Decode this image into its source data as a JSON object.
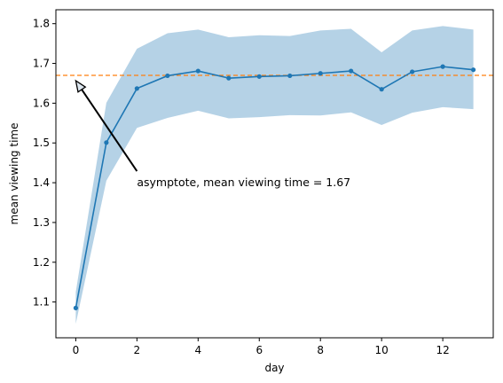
{
  "chart_data": {
    "type": "line",
    "title": "",
    "xlabel": "day",
    "ylabel": "mean viewing time",
    "xlim": [
      -0.65,
      13.65
    ],
    "ylim": [
      1.01,
      1.835
    ],
    "xticks": [
      0,
      2,
      4,
      6,
      8,
      10,
      12
    ],
    "yticks": [
      1.1,
      1.2,
      1.3,
      1.4,
      1.5,
      1.6,
      1.7,
      1.8
    ],
    "grid": false,
    "legend": "none",
    "series": [
      {
        "kind": "line",
        "color": "#1f77b4",
        "marker": "circle",
        "x": [
          0,
          1,
          2,
          3,
          4,
          5,
          6,
          7,
          8,
          9,
          10,
          11,
          12,
          13
        ],
        "y": [
          1.085,
          1.501,
          1.637,
          1.669,
          1.681,
          1.663,
          1.667,
          1.669,
          1.675,
          1.681,
          1.635,
          1.679,
          1.692,
          1.684
        ]
      },
      {
        "kind": "band",
        "color": "#1f77b4",
        "opacity": 0.33,
        "x": [
          0,
          1,
          2,
          3,
          4,
          5,
          6,
          7,
          8,
          9,
          10,
          11,
          12,
          13
        ],
        "lower": [
          1.045,
          1.405,
          1.538,
          1.563,
          1.581,
          1.562,
          1.565,
          1.57,
          1.569,
          1.577,
          1.545,
          1.576,
          1.59,
          1.585
        ],
        "upper": [
          1.125,
          1.601,
          1.737,
          1.776,
          1.785,
          1.766,
          1.771,
          1.769,
          1.783,
          1.787,
          1.728,
          1.783,
          1.794,
          1.785
        ]
      }
    ],
    "hlines": [
      {
        "y": 1.67,
        "color": "#ff7f0e",
        "style": "dashed"
      }
    ],
    "annotations": [
      {
        "text": "asymptote, mean viewing time = 1.67",
        "xy": [
          0,
          1.67
        ],
        "xytext": [
          2,
          1.4
        ],
        "arrow": true,
        "color": "#000000"
      }
    ]
  }
}
